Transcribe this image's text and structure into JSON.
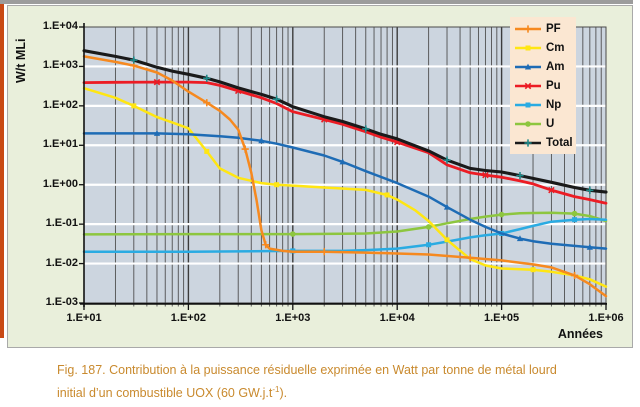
{
  "figure": {
    "y_axis_title": "W/t MLi",
    "x_axis_title": "Années",
    "x_tick_labels": [
      "1.E+01",
      "1.E+02",
      "1.E+03",
      "1.E+04",
      "1.E+05",
      "1.E+06"
    ],
    "y_tick_labels": [
      "1.E+04",
      "1.E+03",
      "1.E+02",
      "1.E+01",
      "1.E+00",
      "1.E-01",
      "1.E-02",
      "1.E-03"
    ]
  },
  "caption": {
    "line1": "Fig. 187. Contribution à la puissance résiduelle exprimée en Watt par tonne de métal lourd",
    "line2_pre": "initial d’un combustible UOX (60 GW.j.t",
    "line2_sup": "-1",
    "line2_post": ")."
  },
  "chart_data": {
    "type": "line",
    "x_scale": "log",
    "y_scale": "log",
    "xlim": [
      10,
      1000000
    ],
    "ylim": [
      0.001,
      10000
    ],
    "xlabel": "Années",
    "ylabel": "W/t MLi",
    "grid": {
      "vertical_minor": true,
      "horizontal_major_white": true
    },
    "legend_position": "top-right",
    "plot_bg": "#ccd5df",
    "draw_order": [
      5,
      4,
      1,
      2,
      3,
      0,
      6
    ],
    "series": [
      {
        "name": "PF",
        "color": "#f6891f",
        "marker": "plus",
        "width": 2.5,
        "points": [
          [
            10,
            1800
          ],
          [
            20,
            1300
          ],
          [
            30,
            1050
          ],
          [
            50,
            700
          ],
          [
            70,
            440
          ],
          [
            100,
            230
          ],
          [
            150,
            120
          ],
          [
            200,
            75
          ],
          [
            250,
            45
          ],
          [
            300,
            25
          ],
          [
            350,
            8
          ],
          [
            400,
            2
          ],
          [
            450,
            0.4
          ],
          [
            500,
            0.07
          ],
          [
            550,
            0.03
          ],
          [
            600,
            0.024
          ],
          [
            800,
            0.021
          ],
          [
            1000,
            0.02
          ],
          [
            2000,
            0.02
          ],
          [
            5000,
            0.019
          ],
          [
            10000,
            0.018
          ],
          [
            20000,
            0.017
          ],
          [
            50000,
            0.014
          ],
          [
            100000,
            0.012
          ],
          [
            200000,
            0.0095
          ],
          [
            300000,
            0.008
          ],
          [
            500000,
            0.005
          ],
          [
            700000,
            0.003
          ],
          [
            1000000,
            0.0015
          ]
        ]
      },
      {
        "name": "Cm",
        "color": "#ffe612",
        "marker": "square",
        "width": 2.5,
        "points": [
          [
            10,
            280
          ],
          [
            20,
            160
          ],
          [
            30,
            100
          ],
          [
            50,
            52
          ],
          [
            70,
            38
          ],
          [
            100,
            27
          ],
          [
            150,
            7
          ],
          [
            200,
            2.6
          ],
          [
            300,
            1.5
          ],
          [
            500,
            1.1
          ],
          [
            700,
            1.0
          ],
          [
            1000,
            0.95
          ],
          [
            2000,
            0.85
          ],
          [
            5000,
            0.74
          ],
          [
            8000,
            0.55
          ],
          [
            10000,
            0.42
          ],
          [
            15000,
            0.22
          ],
          [
            20000,
            0.12
          ],
          [
            30000,
            0.04
          ],
          [
            50000,
            0.013
          ],
          [
            70000,
            0.009
          ],
          [
            100000,
            0.0075
          ],
          [
            200000,
            0.007
          ],
          [
            300000,
            0.0062
          ],
          [
            500000,
            0.005
          ],
          [
            700000,
            0.004
          ],
          [
            1000000,
            0.0026
          ]
        ]
      },
      {
        "name": "Am",
        "color": "#1e6cb5",
        "marker": "triangle",
        "width": 2.5,
        "points": [
          [
            10,
            20
          ],
          [
            30,
            20
          ],
          [
            50,
            20
          ],
          [
            100,
            19
          ],
          [
            200,
            17
          ],
          [
            300,
            15.5
          ],
          [
            500,
            13
          ],
          [
            700,
            11
          ],
          [
            1000,
            8.8
          ],
          [
            2000,
            5.5
          ],
          [
            3000,
            3.8
          ],
          [
            5000,
            2.2
          ],
          [
            10000,
            1.1
          ],
          [
            20000,
            0.5
          ],
          [
            30000,
            0.27
          ],
          [
            50000,
            0.13
          ],
          [
            70000,
            0.085
          ],
          [
            100000,
            0.058
          ],
          [
            150000,
            0.043
          ],
          [
            200000,
            0.037
          ],
          [
            300000,
            0.032
          ],
          [
            500000,
            0.028
          ],
          [
            700000,
            0.026
          ],
          [
            1000000,
            0.024
          ]
        ]
      },
      {
        "name": "Pu",
        "color": "#ec1c24",
        "marker": "x",
        "width": 2.8,
        "points": [
          [
            10,
            390
          ],
          [
            20,
            395
          ],
          [
            50,
            400
          ],
          [
            100,
            400
          ],
          [
            150,
            390
          ],
          [
            200,
            330
          ],
          [
            300,
            240
          ],
          [
            500,
            160
          ],
          [
            700,
            115
          ],
          [
            1000,
            71
          ],
          [
            2000,
            45
          ],
          [
            3000,
            34
          ],
          [
            5000,
            22
          ],
          [
            7000,
            16
          ],
          [
            10000,
            12
          ],
          [
            20000,
            6.5
          ],
          [
            30000,
            3.2
          ],
          [
            50000,
            2.0
          ],
          [
            70000,
            1.75
          ],
          [
            100000,
            1.55
          ],
          [
            150000,
            1.25
          ],
          [
            200000,
            1.05
          ],
          [
            300000,
            0.73
          ],
          [
            500000,
            0.5
          ],
          [
            700000,
            0.42
          ],
          [
            1000000,
            0.34
          ]
        ]
      },
      {
        "name": "Np",
        "color": "#2aabe2",
        "marker": "square",
        "width": 2.5,
        "points": [
          [
            10,
            0.02
          ],
          [
            100,
            0.02
          ],
          [
            1000,
            0.021
          ],
          [
            3000,
            0.021
          ],
          [
            5000,
            0.022
          ],
          [
            10000,
            0.024
          ],
          [
            20000,
            0.03
          ],
          [
            30000,
            0.036
          ],
          [
            50000,
            0.046
          ],
          [
            70000,
            0.052
          ],
          [
            100000,
            0.058
          ],
          [
            150000,
            0.075
          ],
          [
            200000,
            0.09
          ],
          [
            300000,
            0.115
          ],
          [
            500000,
            0.13
          ],
          [
            700000,
            0.135
          ],
          [
            1000000,
            0.13
          ]
        ]
      },
      {
        "name": "U",
        "color": "#8dc63f",
        "marker": "circle",
        "width": 2.5,
        "points": [
          [
            10,
            0.055
          ],
          [
            100,
            0.056
          ],
          [
            1000,
            0.056
          ],
          [
            3000,
            0.057
          ],
          [
            5000,
            0.058
          ],
          [
            10000,
            0.065
          ],
          [
            20000,
            0.085
          ],
          [
            30000,
            0.105
          ],
          [
            50000,
            0.135
          ],
          [
            70000,
            0.155
          ],
          [
            100000,
            0.175
          ],
          [
            150000,
            0.188
          ],
          [
            200000,
            0.192
          ],
          [
            300000,
            0.195
          ],
          [
            500000,
            0.185
          ],
          [
            700000,
            0.16
          ],
          [
            1000000,
            0.12
          ]
        ]
      },
      {
        "name": "Total",
        "color": "#1a1a1a",
        "marker": "plus",
        "marker_color": "#1f8b8b",
        "width": 3.1,
        "points": [
          [
            10,
            2500
          ],
          [
            20,
            1800
          ],
          [
            30,
            1450
          ],
          [
            50,
            950
          ],
          [
            70,
            760
          ],
          [
            100,
            630
          ],
          [
            150,
            500
          ],
          [
            200,
            405
          ],
          [
            300,
            285
          ],
          [
            500,
            195
          ],
          [
            700,
            148
          ],
          [
            1000,
            95
          ],
          [
            2000,
            53
          ],
          [
            3000,
            40
          ],
          [
            5000,
            26
          ],
          [
            7000,
            19
          ],
          [
            10000,
            14.5
          ],
          [
            20000,
            7.2
          ],
          [
            30000,
            4.2
          ],
          [
            50000,
            2.6
          ],
          [
            70000,
            2.3
          ],
          [
            100000,
            2.1
          ],
          [
            150000,
            1.7
          ],
          [
            200000,
            1.45
          ],
          [
            300000,
            1.15
          ],
          [
            500000,
            0.85
          ],
          [
            700000,
            0.72
          ],
          [
            1000000,
            0.65
          ]
        ]
      }
    ]
  },
  "colors": {
    "figure_bg": "#e9efdb",
    "plot_bg": "#ccd5df",
    "legend_bg": "#fbe7d2",
    "grid_minor": "#4f4f4f",
    "grid_major_white": "#ffffff",
    "axis": "#111111",
    "caption_text": "#c98a2e",
    "page_edge_orange": "#c94a15",
    "page_edge_grey": "#9c9c9c"
  }
}
